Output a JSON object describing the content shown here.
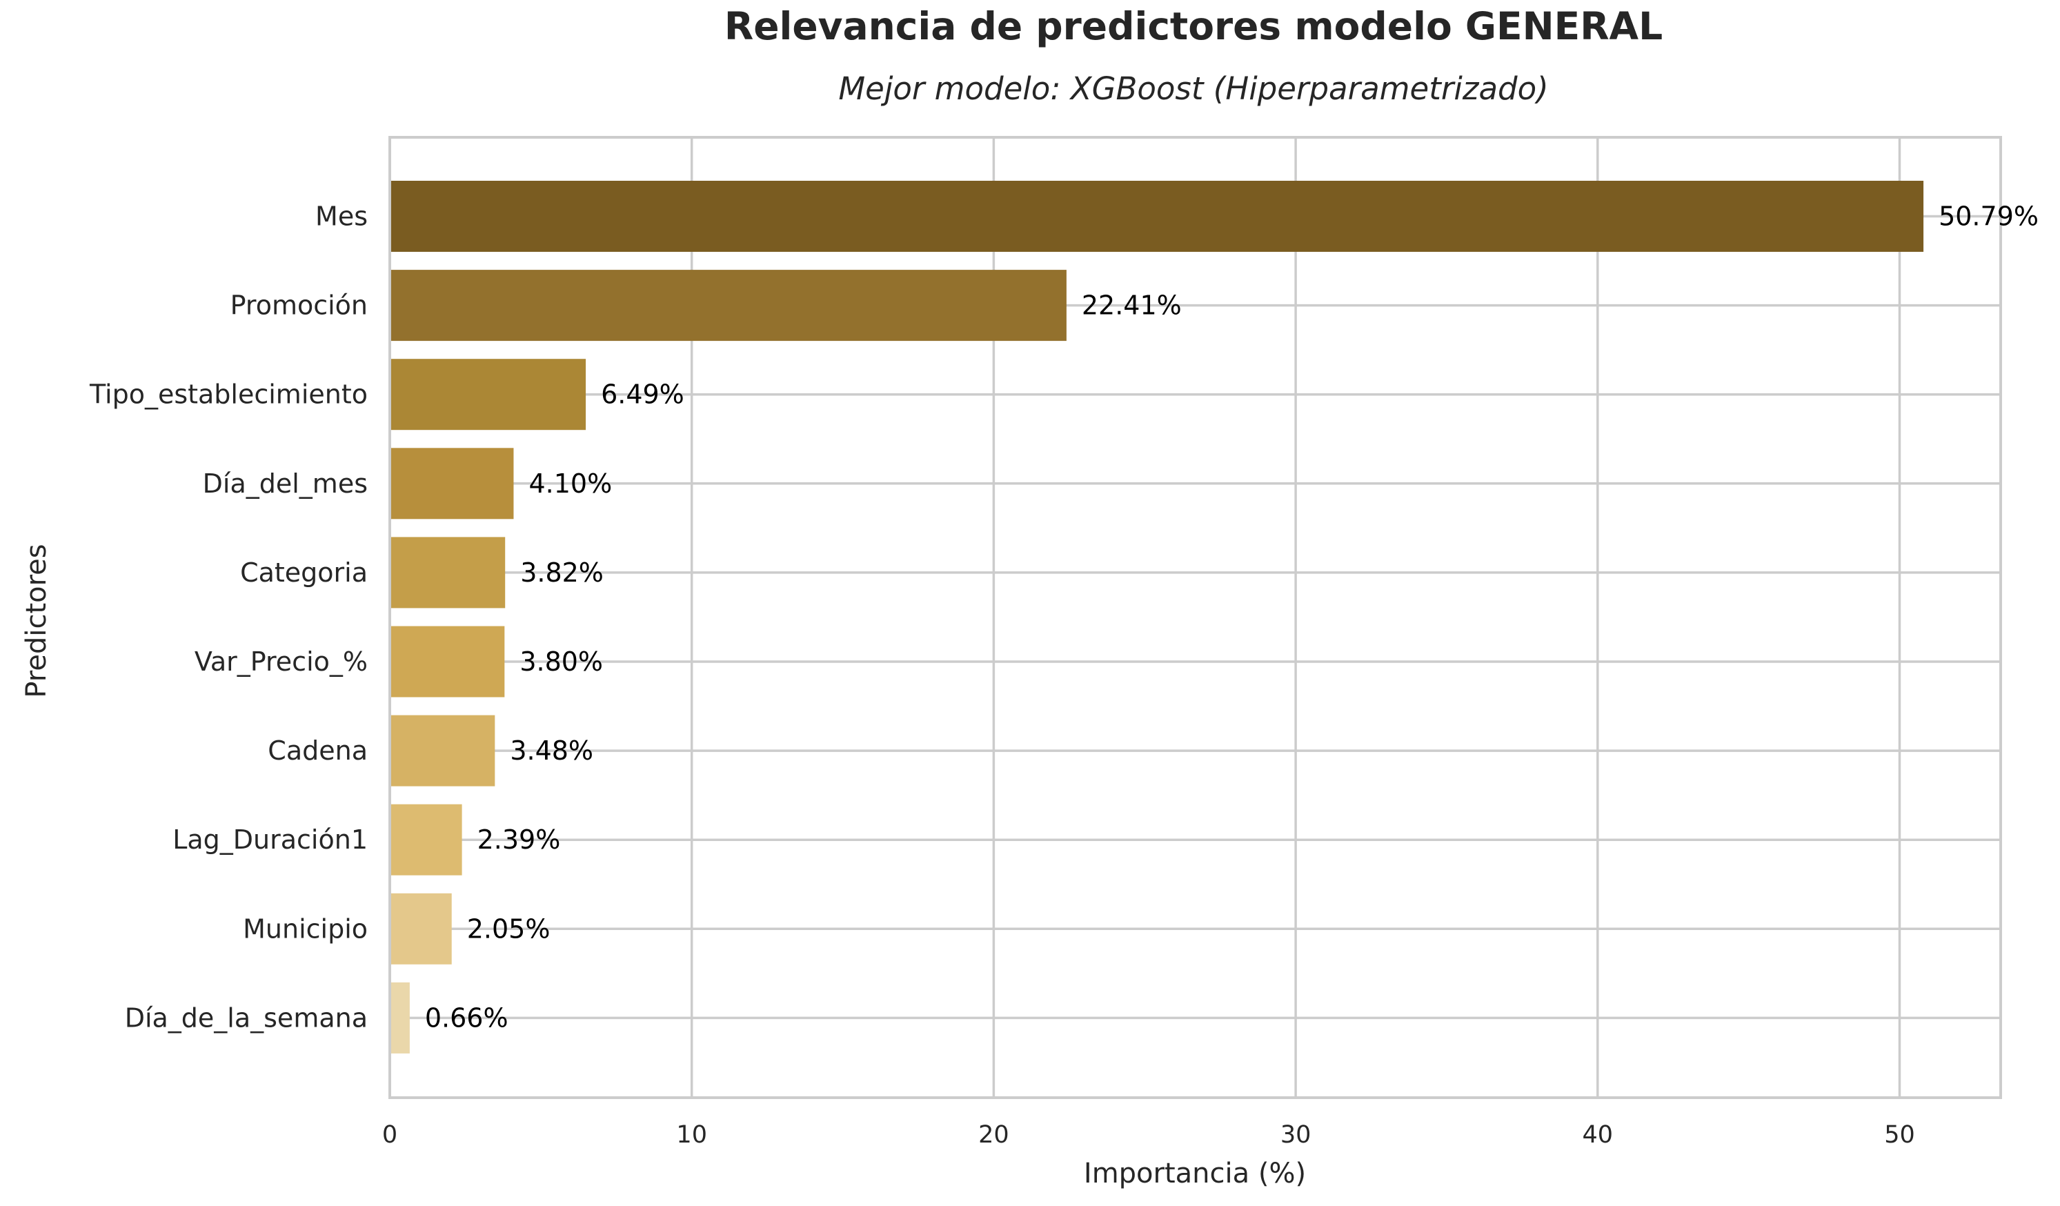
{
  "chart_data": {
    "type": "bar",
    "orientation": "horizontal",
    "title": "Relevancia de predictores modelo GENERAL",
    "subtitle": "Mejor modelo: XGBoost (Hiperparametrizado)",
    "xlabel": "Importancia (%)",
    "ylabel": "Predictores",
    "xlim": [
      0,
      53.33
    ],
    "xticks": [
      0,
      10,
      20,
      30,
      40,
      50
    ],
    "grid": true,
    "categories": [
      "Mes",
      "Promoción",
      "Tipo_establecimiento",
      "Día_del_mes",
      "Categoria",
      "Var_Precio_%",
      "Cadena",
      "Lag_Duración1",
      "Municipio",
      "Día_de_la_semana"
    ],
    "values": [
      50.79,
      22.41,
      6.49,
      4.1,
      3.82,
      3.8,
      3.48,
      2.39,
      2.05,
      0.66
    ],
    "data_labels": [
      "50.79%",
      "22.41%",
      "6.49%",
      "4.10%",
      "3.82%",
      "3.80%",
      "3.48%",
      "2.39%",
      "2.05%",
      "0.66%"
    ],
    "colors": [
      "#7a5c21",
      "#93712d",
      "#ab8735",
      "#b78f3c",
      "#c49e49",
      "#cfa854",
      "#d6b264",
      "#ddbb70",
      "#e4c88b",
      "#ead7aa"
    ]
  }
}
